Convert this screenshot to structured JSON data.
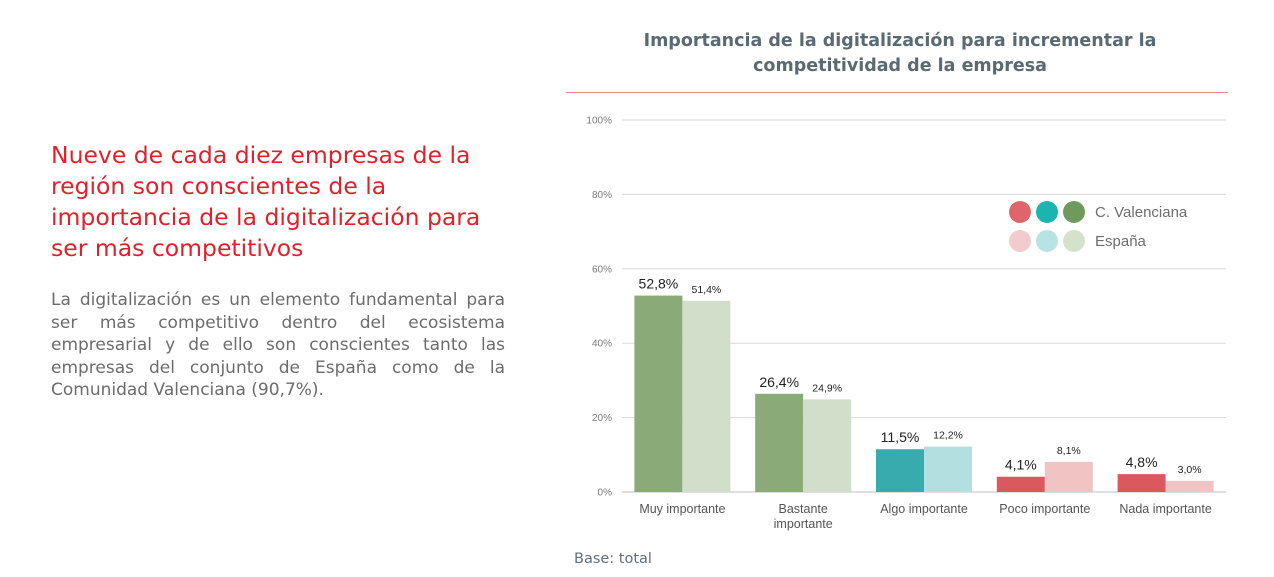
{
  "left_panel": {
    "heading": "Nueve de cada diez empresas de la región son conscientes de la importancia de la digitalización para ser más competitivos",
    "body": "La digitalización es un elemento fundamental para ser más competitivo dentro del ecosistema empresarial y de ello son conscientes tanto las empresas del conjunto de España como de la Comunidad Valenciana (90,7%)."
  },
  "base_note": "Base: total",
  "colors": {
    "heading_red": "#e2202b",
    "title_rule": "#e8848a",
    "cv": [
      "#8aaa78",
      "#8aaa78",
      "#36acaf",
      "#d9595f",
      "#d9595f"
    ],
    "es": [
      "#d1dfca",
      "#d1dfca",
      "#b2dfe0",
      "#efc4c3",
      "#efc4c3"
    ],
    "legend_cv": [
      "#e0656b",
      "#1bb4ae",
      "#6e9a5e"
    ],
    "legend_es": [
      "#f2cccc",
      "#b8e3e5",
      "#d4e2cd"
    ]
  },
  "chart_data": {
    "type": "bar",
    "title": "Importancia de la digitalización para incrementar la competitividad de la empresa",
    "categories": [
      "Muy importante",
      "Bastante importante",
      "Algo importante",
      "Poco importante",
      "Nada importante"
    ],
    "series": [
      {
        "name": "C. Valenciana",
        "values": [
          52.8,
          26.4,
          11.5,
          4.1,
          4.8
        ],
        "labels": [
          "52,8%",
          "26,4%",
          "11,5%",
          "4,1%",
          "4,8%"
        ]
      },
      {
        "name": "España",
        "values": [
          51.4,
          24.9,
          12.2,
          8.1,
          3.0
        ],
        "labels": [
          "51,4%",
          "24,9%",
          "12,2%",
          "8,1%",
          "3,0%"
        ]
      }
    ],
    "ylim": [
      0,
      100
    ],
    "yticks": [
      "0%",
      "20%",
      "40%",
      "60%",
      "80%",
      "100%"
    ],
    "grid": true,
    "legend_position": "top-right"
  }
}
